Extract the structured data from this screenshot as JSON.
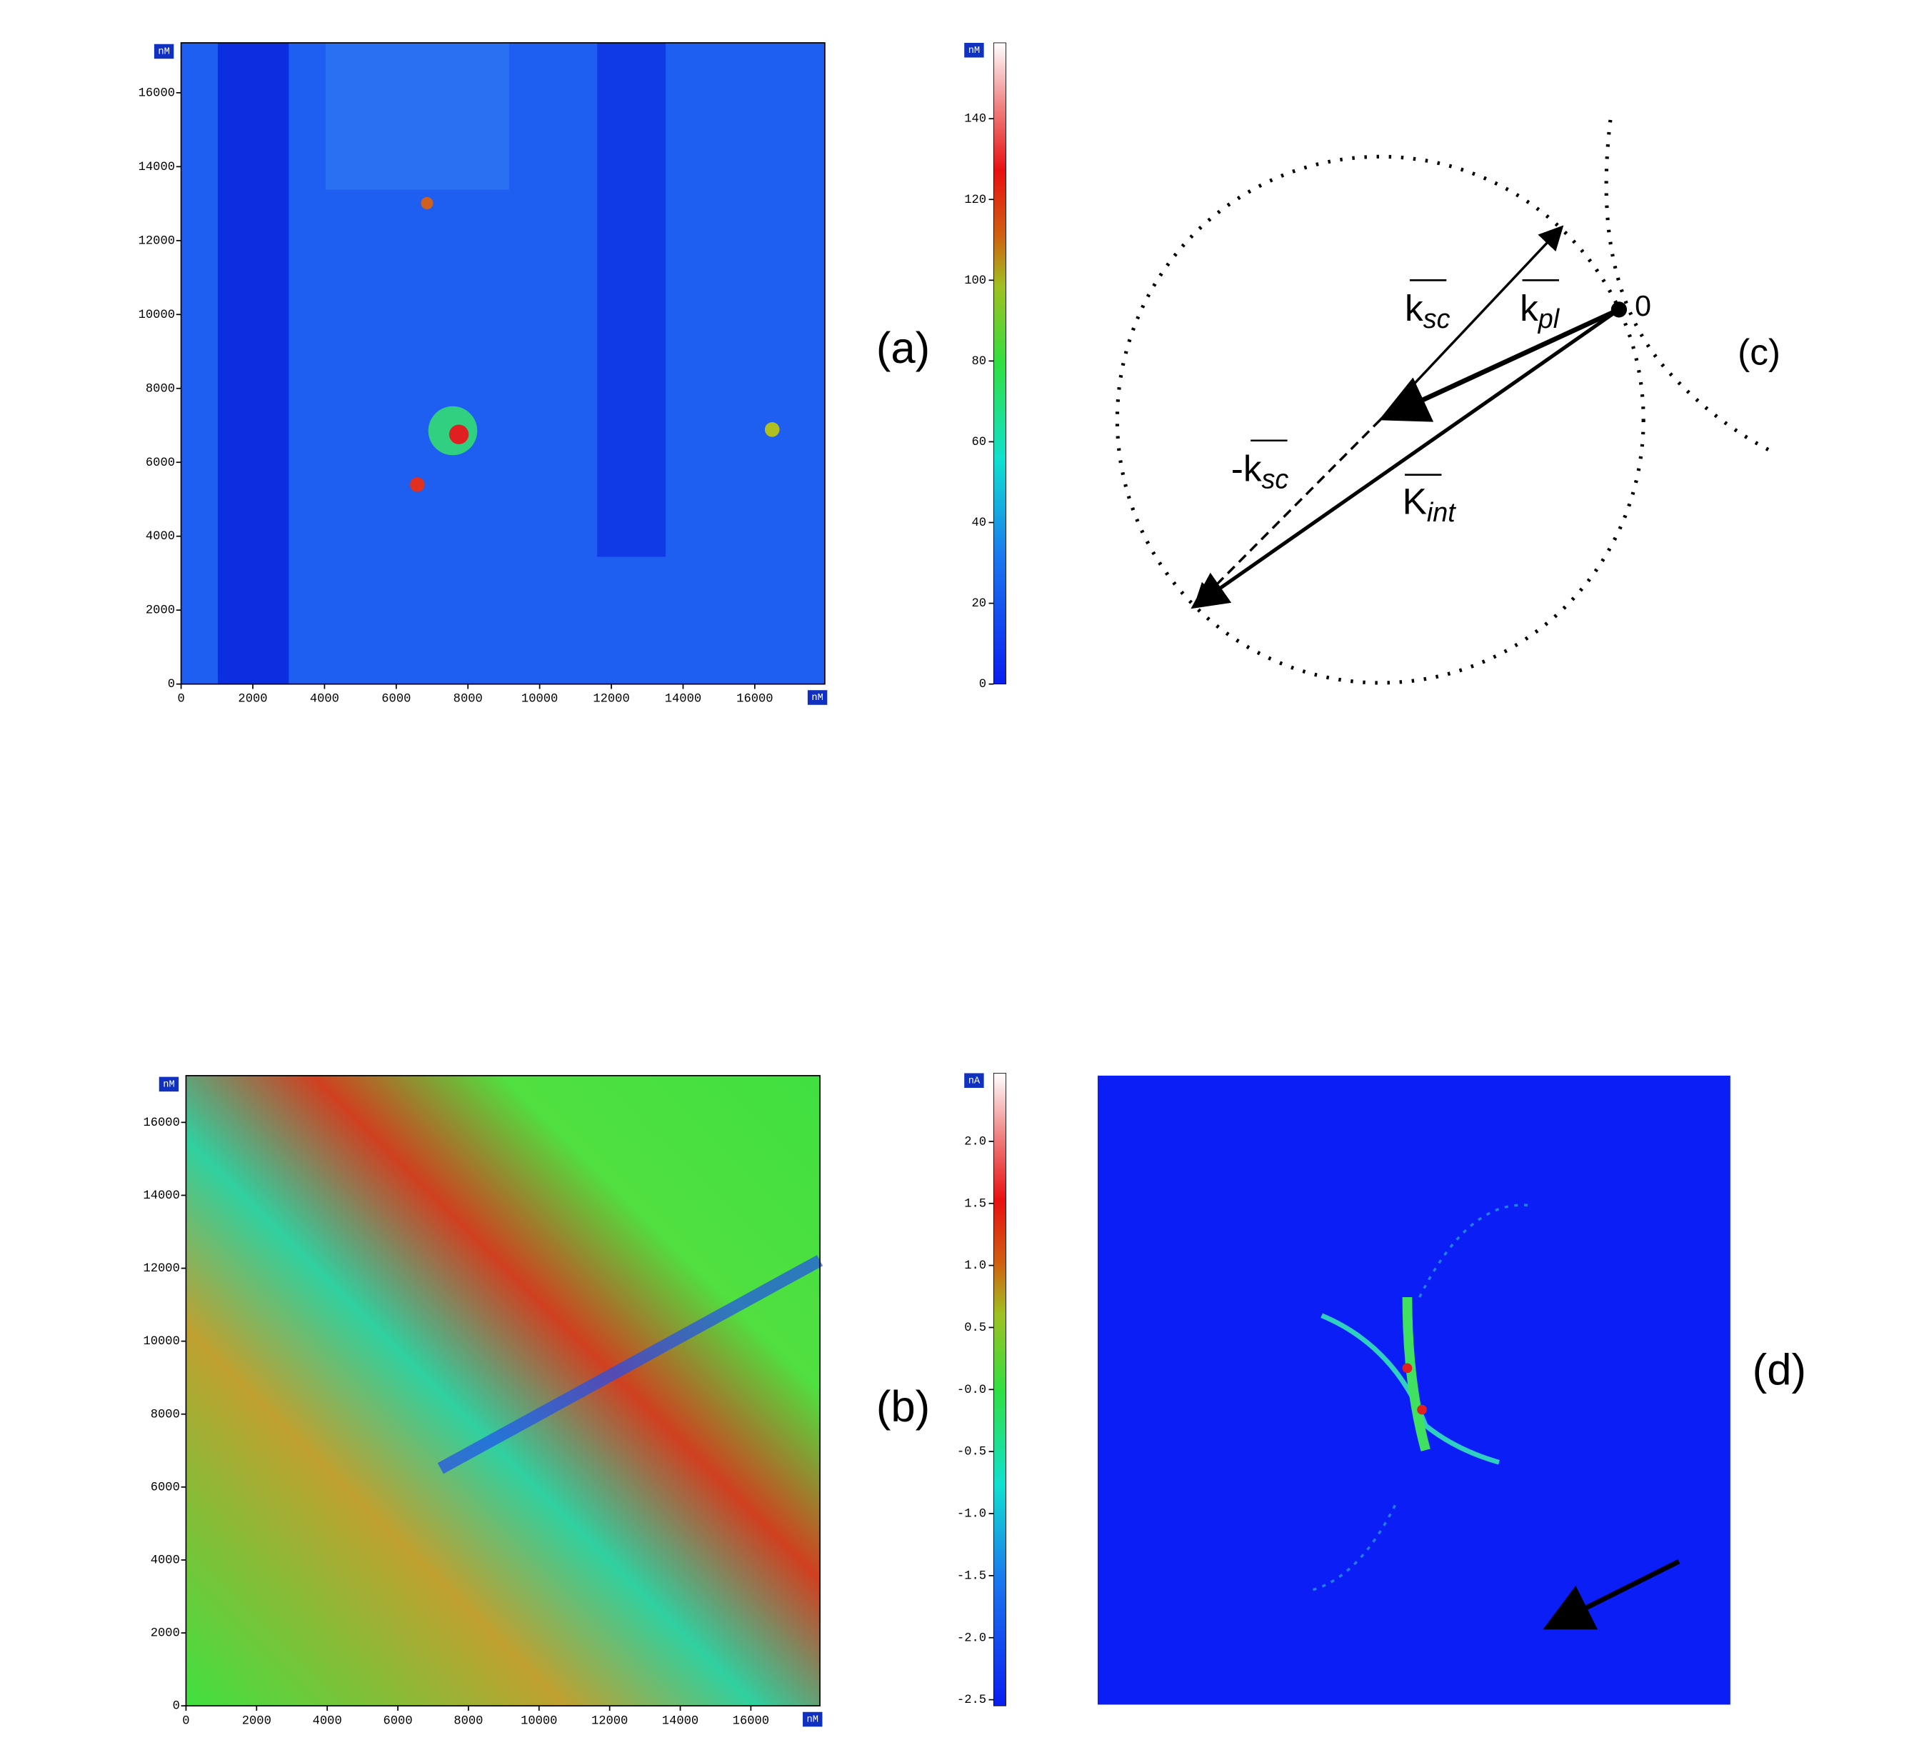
{
  "panel_a": {
    "label": "(a)",
    "unit": "nM",
    "x_ticks": [
      "0",
      "2000",
      "4000",
      "6000",
      "8000",
      "10000",
      "12000",
      "14000",
      "16000"
    ],
    "y_ticks": [
      "0",
      "2000",
      "4000",
      "6000",
      "8000",
      "10000",
      "12000",
      "14000",
      "16000"
    ],
    "colorbar": {
      "unit": "nM",
      "ticks": [
        "0",
        "20",
        "40",
        "60",
        "80",
        "100",
        "120",
        "140"
      ]
    }
  },
  "panel_b": {
    "label": "(b)",
    "unit": "nM",
    "x_ticks": [
      "0",
      "2000",
      "4000",
      "6000",
      "8000",
      "10000",
      "12000",
      "14000",
      "16000"
    ],
    "y_ticks": [
      "0",
      "2000",
      "4000",
      "6000",
      "8000",
      "10000",
      "12000",
      "14000",
      "16000"
    ],
    "colorbar": {
      "unit": "nA",
      "ticks": [
        "-2.5",
        "-2.0",
        "-1.5",
        "-1.0",
        "-0.5",
        "-0.0",
        "0.5",
        "1.0",
        "1.5",
        "2.0"
      ]
    }
  },
  "panel_c": {
    "label": "(c)",
    "origin": "0",
    "k_sc": {
      "base": "k",
      "sub": "sc"
    },
    "k_pl": {
      "base": "k",
      "sub": "pl"
    },
    "minus_k_sc": {
      "base": "-k",
      "sub": "sc"
    },
    "K_int": {
      "base": "K",
      "sub": "int"
    }
  },
  "panel_d": {
    "label": "(d)"
  }
}
